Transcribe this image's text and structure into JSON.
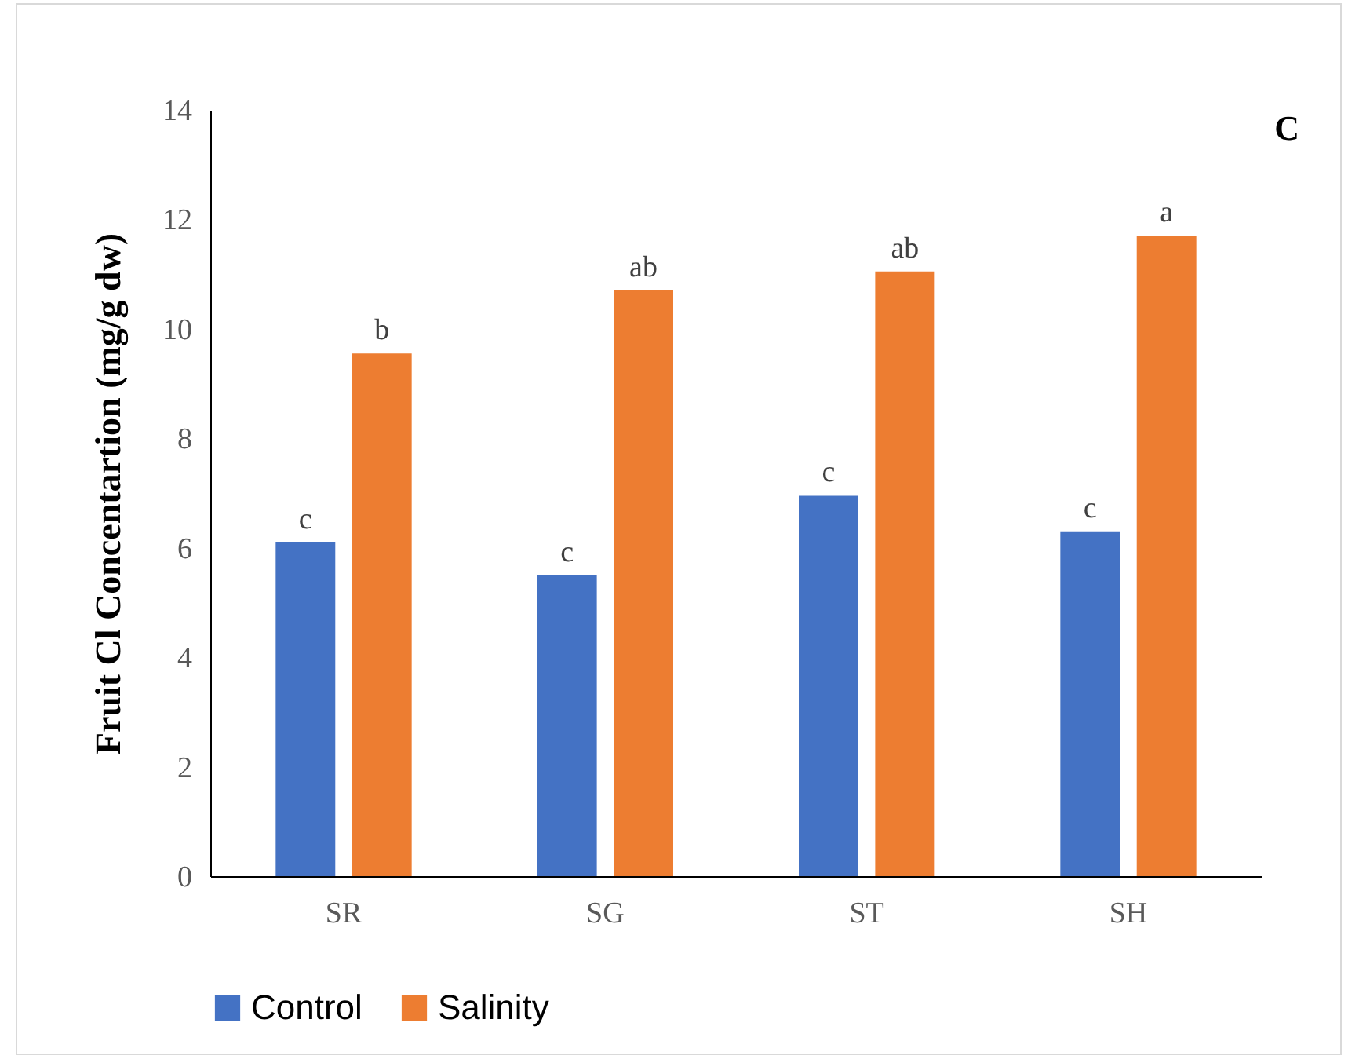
{
  "chart_data": {
    "type": "bar",
    "ylabel": "Fruit Cl Concentartion  (mg/g dw)",
    "categories": [
      "SR",
      "SG",
      "ST",
      "SH"
    ],
    "series": [
      {
        "name": "Control",
        "color": "#4472c4",
        "values": [
          6.1,
          5.5,
          6.95,
          6.3
        ],
        "value_labels": [
          "c",
          "c",
          "c",
          "c"
        ]
      },
      {
        "name": "Salinity",
        "color": "#ed7d31",
        "values": [
          9.55,
          10.7,
          11.05,
          11.7
        ],
        "value_labels": [
          "b",
          "ab",
          "ab",
          "a"
        ]
      }
    ],
    "ylim": [
      0,
      14
    ],
    "yticks": [
      0,
      2,
      4,
      6,
      8,
      10,
      12,
      14
    ],
    "grid": false,
    "legend": "bottom",
    "annotations": [
      "C"
    ]
  }
}
